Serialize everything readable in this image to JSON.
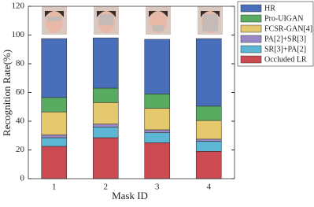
{
  "chart_data": {
    "type": "stacked_bar",
    "categories": [
      "1",
      "2",
      "3",
      "4"
    ],
    "series": [
      {
        "name": "HR",
        "color": "#4a6fba",
        "values": [
          41,
          35,
          38,
          47
        ]
      },
      {
        "name": "Pro-UIGAN",
        "color": "#5aab62",
        "values": [
          10,
          10,
          10,
          10
        ]
      },
      {
        "name": "FCSR-GAN[4]",
        "color": "#e4c96e",
        "values": [
          16,
          15,
          15,
          13
        ]
      },
      {
        "name": "PA[2]+SR[3]",
        "color": "#9a88c6",
        "values": [
          2,
          2,
          2,
          1.5
        ]
      },
      {
        "name": "SR[3]+PA[2]",
        "color": "#5db6d4",
        "values": [
          6,
          7.5,
          7,
          7
        ]
      },
      {
        "name": "Occluded LR",
        "color": "#cc4b53",
        "values": [
          22.5,
          28.5,
          25,
          19
        ]
      }
    ],
    "xlabel": "Mask ID",
    "ylabel": "Recognition Rate(%)",
    "ylim": [
      0,
      120
    ],
    "yticks": [
      0,
      20,
      40,
      60,
      80,
      100,
      120
    ],
    "legend": "right"
  }
}
